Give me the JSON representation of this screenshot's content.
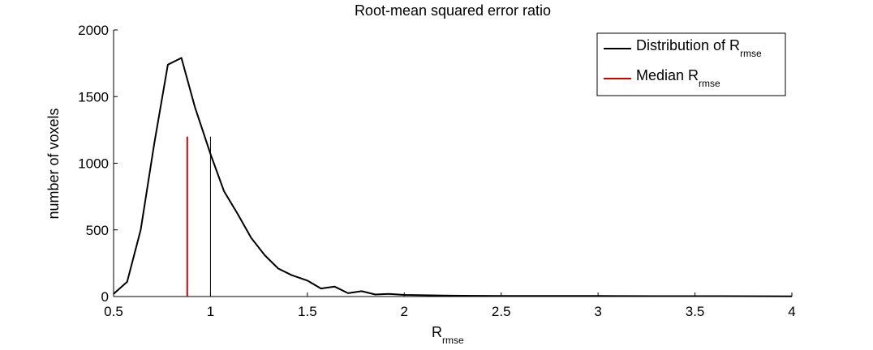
{
  "chart_data": {
    "type": "line",
    "title": "Root-mean squared error ratio",
    "xlabel": {
      "main": "R",
      "sub": "rmse"
    },
    "ylabel": "number of voxels",
    "xlim": [
      0.5,
      4
    ],
    "ylim": [
      0,
      2000
    ],
    "xticks": [
      0.5,
      1,
      1.5,
      2,
      2.5,
      3,
      3.5,
      4
    ],
    "yticks": [
      0,
      500,
      1000,
      1500,
      2000
    ],
    "xtick_labels": [
      "0.5",
      "1",
      "1.5",
      "2",
      "2.5",
      "3",
      "3.5",
      "4"
    ],
    "ytick_labels": [
      "0",
      "500",
      "1000",
      "1500",
      "2000"
    ],
    "grid": false,
    "legend_position": "top-right",
    "series": [
      {
        "name": {
          "main": "Distribution of R",
          "sub": "rmse"
        },
        "color": "#000000",
        "x": [
          0.5,
          0.57,
          0.64,
          0.71,
          0.78,
          0.85,
          0.92,
          1.0,
          1.07,
          1.14,
          1.21,
          1.28,
          1.35,
          1.42,
          1.5,
          1.57,
          1.64,
          1.71,
          1.78,
          1.85,
          1.92,
          2.0,
          2.1,
          2.2,
          2.3,
          2.5,
          2.7,
          3.0,
          3.3,
          3.6,
          4.0
        ],
        "y": [
          20,
          110,
          500,
          1150,
          1740,
          1790,
          1420,
          1070,
          790,
          620,
          440,
          310,
          210,
          160,
          120,
          60,
          75,
          25,
          40,
          15,
          20,
          12,
          10,
          8,
          6,
          5,
          4,
          4,
          3,
          3,
          2
        ]
      }
    ],
    "markers": [
      {
        "name": {
          "main": "Median R",
          "sub": "rmse"
        },
        "x": 0.88,
        "y_top": 1200,
        "color": "#d00000"
      },
      {
        "x": 1.0,
        "y_top": 1200,
        "color": "#000000"
      }
    ]
  }
}
